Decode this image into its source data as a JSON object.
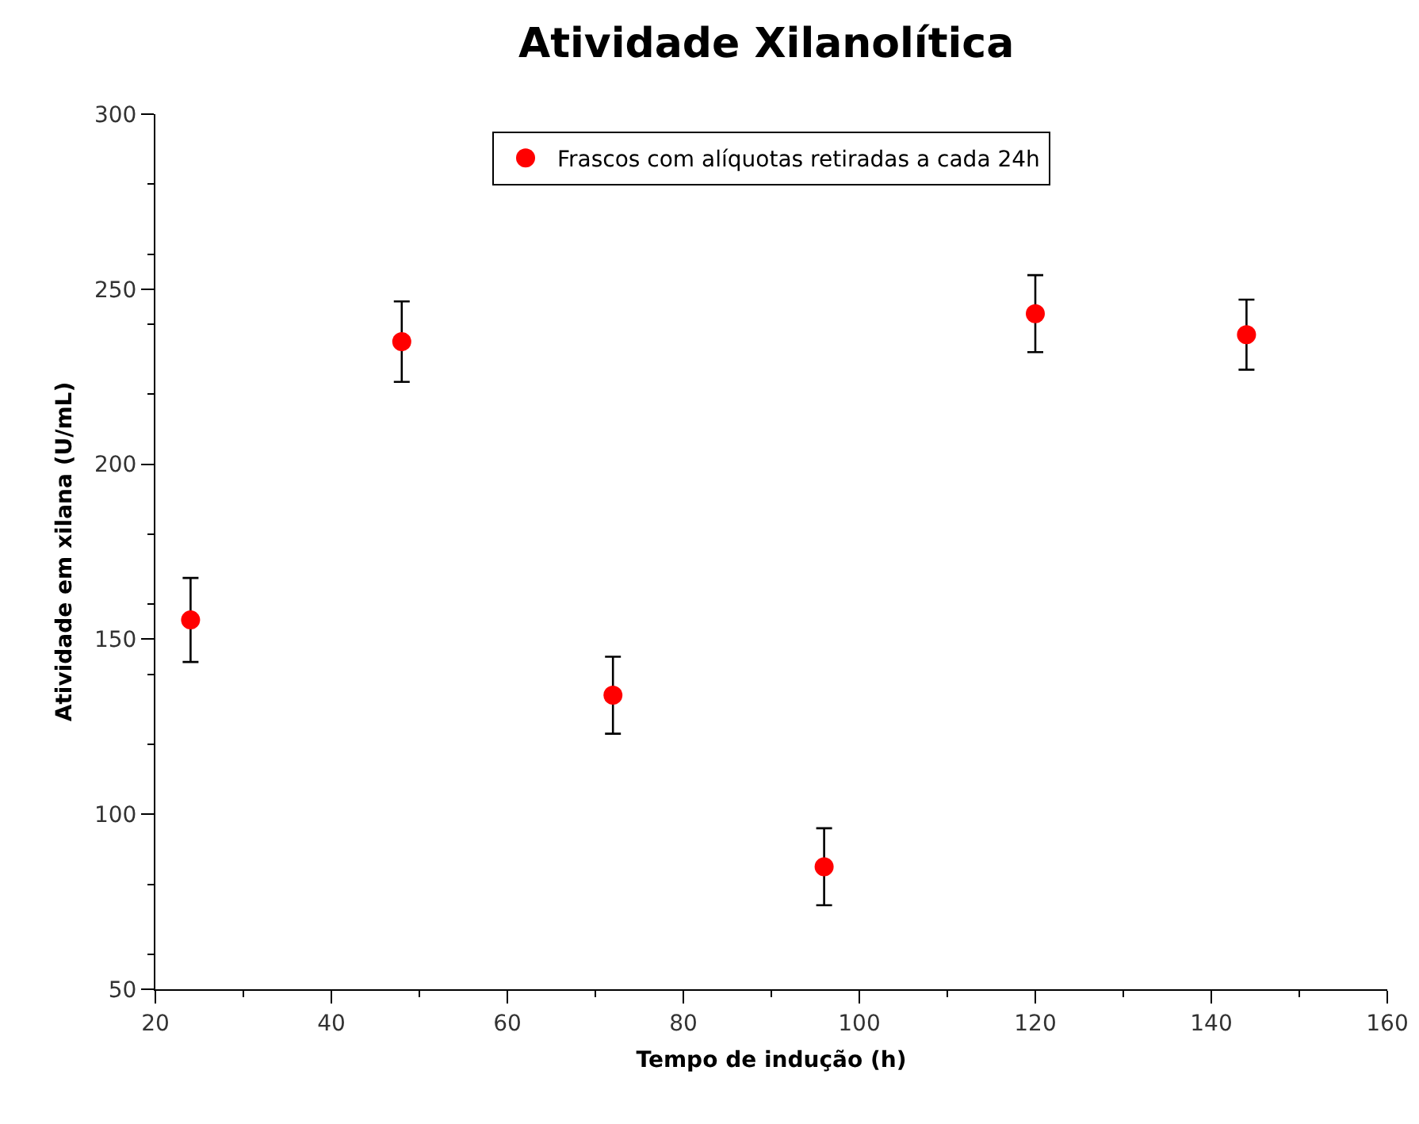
{
  "chart_data": {
    "type": "scatter",
    "title": "Atividade Xilanolítica",
    "xlabel": "Tempo de indução (h)",
    "ylabel": "Atividade em xilana (U/mL)",
    "x": [
      24,
      48,
      72,
      96,
      120,
      144
    ],
    "series": [
      {
        "name": "Frascos com alíquotas retiradas a cada 24h",
        "color": "#ff0000",
        "values": [
          155.5,
          235,
          134,
          85,
          243,
          237
        ],
        "errors": [
          12,
          11.5,
          11,
          11,
          11,
          10
        ]
      }
    ],
    "xlim": [
      20,
      160
    ],
    "xticks": [
      20,
      40,
      60,
      80,
      100,
      120,
      140,
      160
    ],
    "ylim": [
      50,
      300
    ],
    "yticks": [
      50,
      100,
      150,
      200,
      250,
      300
    ],
    "grid": false,
    "legend": "top",
    "marker": "circle"
  }
}
